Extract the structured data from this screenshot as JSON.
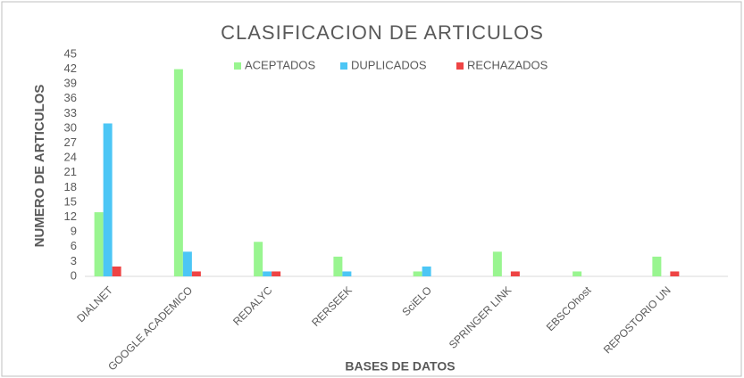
{
  "chart_data": {
    "type": "bar",
    "title": "CLASIFICACION DE ARTICULOS",
    "x_label": "BASES DE DATOS",
    "y_label": "NUMERO DE ARTICULOS",
    "categories": [
      "DIALNET",
      "GOOGLE ACADEMICO",
      "REDALYC",
      "RERSEEK",
      "SciELO",
      "SPRINGER LINK",
      "EBSCOhost",
      "REPOSTORIO UN"
    ],
    "series": [
      {
        "name": "ACEPTADOS",
        "color": "#99f590",
        "values": [
          13,
          42,
          7,
          4,
          1,
          5,
          1,
          4
        ]
      },
      {
        "name": "DUPLICADOS",
        "color": "#4cc6f5",
        "values": [
          31,
          5,
          1,
          1,
          2,
          0,
          0,
          0
        ]
      },
      {
        "name": "RECHAZADOS",
        "color": "#ee4444",
        "values": [
          2,
          1,
          1,
          0,
          0,
          1,
          0,
          1
        ]
      }
    ],
    "ylim": [
      0,
      45
    ],
    "yticks": [
      0,
      3,
      6,
      9,
      12,
      15,
      18,
      21,
      24,
      27,
      30,
      33,
      36,
      39,
      42,
      45
    ],
    "legend": "top"
  }
}
